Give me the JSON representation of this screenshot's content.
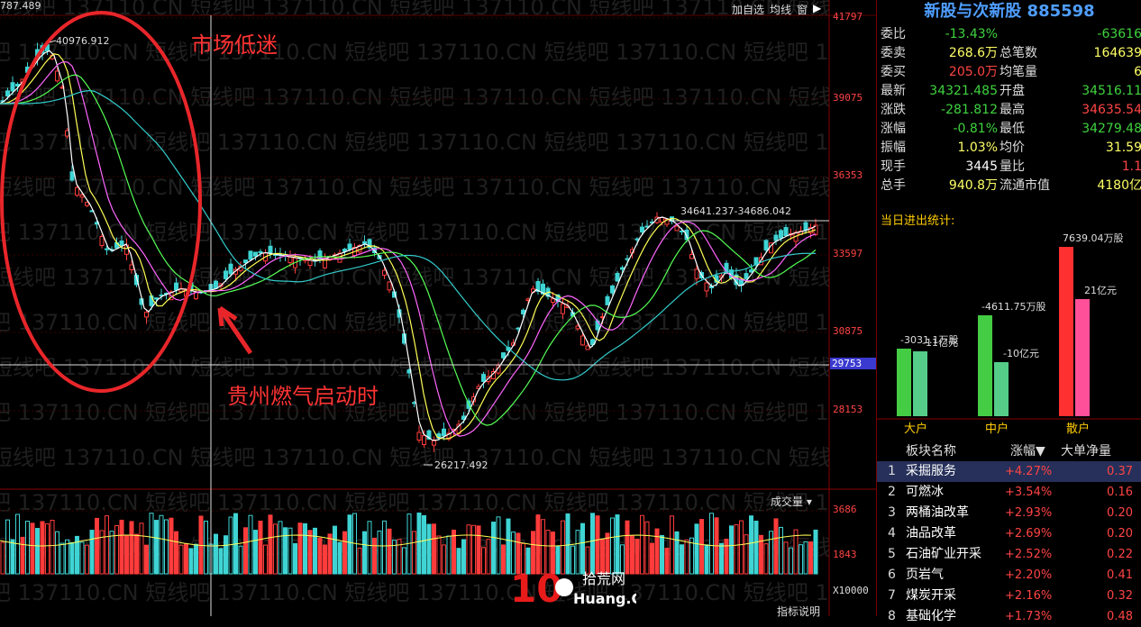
{
  "top_left_value": "787.489",
  "toolbar": [
    "加自选",
    "均线",
    "窗"
  ],
  "watermark": "短线吧 137110.CN",
  "price_axis": [
    "41797",
    "39075",
    "36353",
    "33597",
    "30875",
    "28153"
  ],
  "cursor_price": "29753",
  "volume_axis": [
    "3686",
    "1843",
    "X10000"
  ],
  "annotations": {
    "circle_label": "市场低迷",
    "arrow_label": "贵州燃气启动时",
    "high": "40976.912",
    "low": "26217.492",
    "range": "34641.237-34686.042"
  },
  "volume_selector": "成交量",
  "bottom_hint": "指标说明",
  "logo": {
    "main": "10",
    "sub1": "拾荒网",
    "sub2": "Huang.CN"
  },
  "panel": {
    "title": "新股与次新股 885598",
    "quotes": [
      {
        "l1": "委比",
        "v1": "-13.43%",
        "c1": "#3fd33f",
        "l2": "",
        "v2": "-63616",
        "c2": "#3fd33f"
      },
      {
        "l1": "委卖",
        "v1": "268.6万",
        "c1": "#ffff66",
        "l2": "总笔数",
        "v2": "164639",
        "c2": "#ffff66"
      },
      {
        "l1": "委买",
        "v1": "205.0万",
        "c1": "#ff4444",
        "l2": "均笔量",
        "v2": "6",
        "c2": "#ffff66"
      },
      {
        "l1": "最新",
        "v1": "34321.485",
        "c1": "#3fd33f",
        "l2": "开盘",
        "v2": "34516.11",
        "c2": "#3fd33f"
      },
      {
        "l1": "涨跌",
        "v1": "-281.812",
        "c1": "#3fd33f",
        "l2": "最高",
        "v2": "34635.54",
        "c2": "#ff4444"
      },
      {
        "l1": "涨幅",
        "v1": "-0.81%",
        "c1": "#3fd33f",
        "l2": "最低",
        "v2": "34279.48",
        "c2": "#3fd33f"
      },
      {
        "l1": "振幅",
        "v1": "1.03%",
        "c1": "#ffff66",
        "l2": "均价",
        "v2": "31.59",
        "c2": "#ffff66"
      },
      {
        "l1": "现手",
        "v1": "3445",
        "c1": "#ffffff",
        "l2": "量比",
        "v2": "1.1",
        "c2": "#ff4444"
      },
      {
        "l1": "总手",
        "v1": "940.8万",
        "c1": "#ffff66",
        "l2": "流通市值",
        "v2": "4180亿",
        "c2": "#ffff66"
      }
    ],
    "today_label": "当日进出统计:",
    "bars": [
      {
        "name": "大户",
        "in": "-3031.1万股",
        "out": "-11亿元"
      },
      {
        "name": "中户",
        "in": "-4611.75万股",
        "out": "-10亿元"
      },
      {
        "name": "散户",
        "in": "7639.04万股",
        "out": "21亿元"
      }
    ],
    "table_headers": [
      "板块名称",
      "涨幅",
      "大单净量"
    ],
    "table_rows": [
      {
        "n": "1",
        "name": "采掘服务",
        "chg": "+4.27%",
        "net": "0.37"
      },
      {
        "n": "2",
        "name": "可燃冰",
        "chg": "+3.54%",
        "net": "0.16"
      },
      {
        "n": "3",
        "name": "两桶油改革",
        "chg": "+2.93%",
        "net": "0.20"
      },
      {
        "n": "4",
        "name": "油品改革",
        "chg": "+2.69%",
        "net": "0.20"
      },
      {
        "n": "5",
        "name": "石油矿业开采",
        "chg": "+2.52%",
        "net": "0.22"
      },
      {
        "n": "6",
        "name": "页岩气",
        "chg": "+2.20%",
        "net": "0.41"
      },
      {
        "n": "7",
        "name": "煤炭开采",
        "chg": "+2.16%",
        "net": "0.32"
      },
      {
        "n": "8",
        "name": "基础化学",
        "chg": "+1.73%",
        "net": "0.48"
      }
    ]
  }
}
